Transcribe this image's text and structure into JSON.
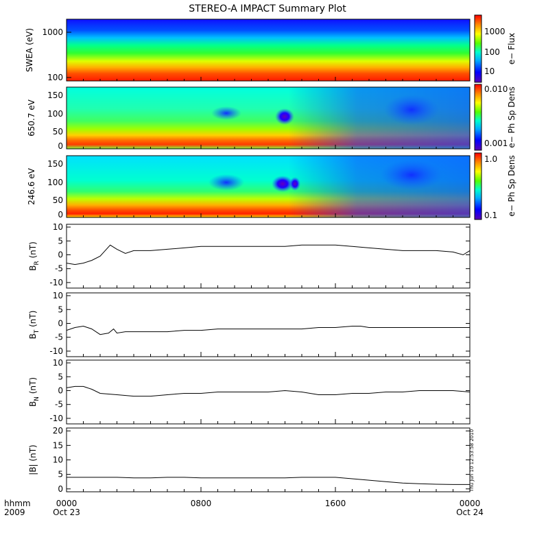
{
  "title": "STEREO-A IMPACT Summary Plot",
  "time_label": {
    "line1": "hhmm",
    "line2": "2009"
  },
  "x_axis": {
    "ticks": [
      {
        "hour": 0,
        "top": "0000",
        "bottom": "Oct 23"
      },
      {
        "hour": 8,
        "top": "0800",
        "bottom": ""
      },
      {
        "hour": 16,
        "top": "1600",
        "bottom": ""
      },
      {
        "hour": 24,
        "top": "0000",
        "bottom": "Oct 24"
      }
    ],
    "range_hours": [
      0,
      24
    ]
  },
  "colorbars": [
    {
      "label": "e− Flux",
      "ticks": [
        "1000",
        "100",
        "10"
      ]
    },
    {
      "label": "e− Ph Sp Dens",
      "ticks": [
        "0.010",
        "0.001"
      ]
    },
    {
      "label": "e− Ph Sp Dens",
      "ticks": [
        "1.0",
        "0.1"
      ]
    }
  ],
  "spectrogram_panels": [
    {
      "ylabel": "SWEA (eV)",
      "ticks": [
        "1000",
        "100"
      ]
    },
    {
      "ylabel": "650.7 eV",
      "ticks": [
        "150",
        "100",
        "50",
        "0"
      ]
    },
    {
      "ylabel": "246.6 eV",
      "ticks": [
        "150",
        "100",
        "50",
        "0"
      ]
    }
  ],
  "timestamp": "Thu Jun 10 12:53:58 2010",
  "colors": {
    "line": "#000000",
    "axis": "#000000",
    "background": "#ffffff"
  },
  "chart_data": [
    {
      "type": "heatmap",
      "ylabel": "SWEA (eV)",
      "yscale": "log",
      "ylim": [
        90,
        2000
      ],
      "colorbar_label": "e− Flux",
      "colorbar_scale": "log",
      "colorbar_range": [
        5,
        3000
      ]
    },
    {
      "type": "heatmap",
      "ylabel": "650.7 eV",
      "ylim": [
        -10,
        180
      ],
      "colorbar_label": "e− Ph Sp Dens",
      "colorbar_scale": "log",
      "colorbar_range": [
        0.0008,
        0.012
      ]
    },
    {
      "type": "heatmap",
      "ylabel": "246.6 eV",
      "ylim": [
        -10,
        180
      ],
      "colorbar_label": "e− Ph Sp Dens",
      "colorbar_scale": "log",
      "colorbar_range": [
        0.09,
        1.2
      ]
    },
    {
      "type": "line",
      "ylabel": "B_R (nT)",
      "ylim": [
        -12,
        11
      ],
      "yticks": [
        -10,
        -5,
        0,
        5,
        10
      ],
      "x": [
        0,
        0.5,
        1,
        1.5,
        2,
        2.3,
        2.6,
        3,
        3.5,
        4,
        5,
        6,
        7,
        8,
        9,
        10,
        11,
        12,
        13,
        14,
        15,
        16,
        17,
        18,
        19,
        20,
        21,
        22,
        23,
        23.6,
        24
      ],
      "y": [
        -3,
        -3.5,
        -3,
        -2,
        -0.5,
        1.5,
        3.5,
        2,
        0.5,
        1.5,
        1.5,
        2,
        2.5,
        3,
        3,
        3,
        3,
        3,
        3,
        3.5,
        3.5,
        3.5,
        3,
        2.5,
        2,
        1.5,
        1.5,
        1.5,
        1,
        0,
        1.5
      ]
    },
    {
      "type": "line",
      "ylabel": "B_T (nT)",
      "ylim": [
        -12,
        11
      ],
      "yticks": [
        -10,
        -5,
        0,
        5,
        10
      ],
      "x": [
        0,
        0.5,
        1,
        1.5,
        2,
        2.5,
        2.8,
        3,
        3.5,
        4,
        5,
        6,
        7,
        8,
        9,
        10,
        11,
        12,
        13,
        14,
        15,
        16,
        17,
        17.5,
        18,
        19,
        20,
        21,
        22,
        23,
        24
      ],
      "y": [
        -2.5,
        -1.5,
        -1,
        -2,
        -4,
        -3.5,
        -2,
        -3.5,
        -3,
        -3,
        -3,
        -3,
        -2.5,
        -2.5,
        -2,
        -2,
        -2,
        -2,
        -2,
        -2,
        -1.5,
        -1.5,
        -1,
        -1,
        -1.5,
        -1.5,
        -1.5,
        -1.5,
        -1.5,
        -1.5,
        -1.5
      ]
    },
    {
      "type": "line",
      "ylabel": "B_N (nT)",
      "ylim": [
        -12,
        11
      ],
      "yticks": [
        -10,
        -5,
        0,
        5,
        10
      ],
      "x": [
        0,
        0.5,
        1,
        1.5,
        2,
        3,
        4,
        5,
        6,
        7,
        8,
        9,
        10,
        11,
        12,
        13,
        14,
        15,
        16,
        17,
        18,
        19,
        20,
        21,
        22,
        23,
        24
      ],
      "y": [
        1,
        1.5,
        1.5,
        0.5,
        -1,
        -1.5,
        -2,
        -2,
        -1.5,
        -1,
        -1,
        -0.5,
        -0.5,
        -0.5,
        -0.5,
        0,
        -0.5,
        -1.5,
        -1.5,
        -1,
        -1,
        -0.5,
        -0.5,
        0,
        0,
        0,
        -0.5
      ]
    },
    {
      "type": "line",
      "ylabel": "|B| (nT)",
      "ylim": [
        -1,
        21
      ],
      "yticks": [
        0,
        5,
        10,
        15,
        20
      ],
      "x": [
        0,
        1,
        2,
        3,
        4,
        5,
        6,
        7,
        8,
        9,
        10,
        11,
        12,
        13,
        14,
        15,
        16,
        17,
        18,
        19,
        20,
        21,
        22,
        23,
        24
      ],
      "y": [
        4,
        4,
        4,
        4,
        3.8,
        3.8,
        4,
        4,
        3.8,
        3.8,
        3.8,
        3.8,
        3.8,
        3.8,
        4,
        4,
        4,
        3.5,
        3,
        2.5,
        2,
        1.8,
        1.6,
        1.5,
        1.5
      ]
    }
  ]
}
